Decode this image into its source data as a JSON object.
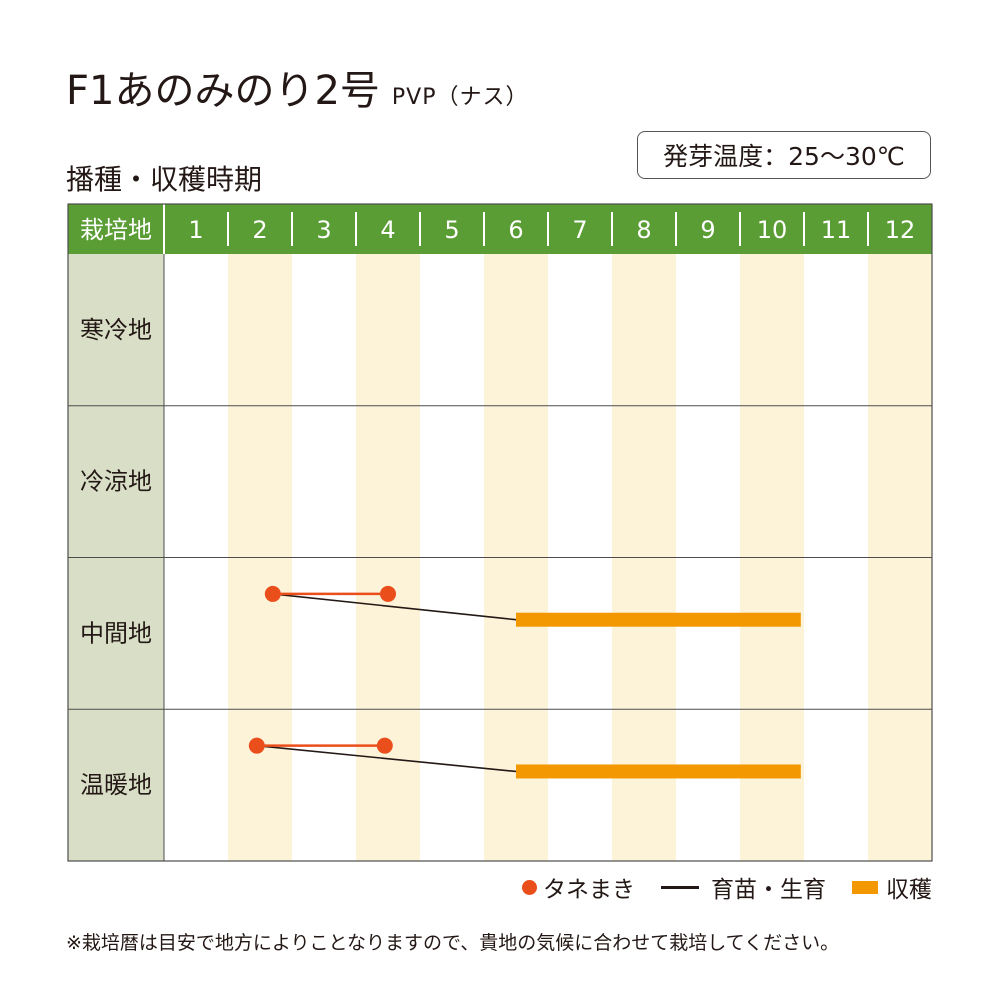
{
  "title": {
    "main": "F1あのみのり2号",
    "sub": "PVP（ナス）"
  },
  "germination_temp": "発芽温度：25～30℃",
  "section_title": "播種・収穫時期",
  "legend": {
    "sowing": "タネまき",
    "growing": "育苗・生育",
    "harvest": "収穫"
  },
  "note": "※栽培暦は目安で地方によりことなりますので、貴地の気候に合わせて栽培してください。",
  "colors": {
    "header_green": "#5a9d34",
    "region_bg": "#d8dfc6",
    "stripe": "#fdf3d9",
    "sowing": "#ea4e1b",
    "growing": "#231815",
    "harvest": "#f39800"
  },
  "chart_data": {
    "type": "gantt",
    "corner_label": "栽培地",
    "months": [
      "1",
      "2",
      "3",
      "4",
      "5",
      "6",
      "7",
      "8",
      "9",
      "10",
      "11",
      "12"
    ],
    "highlighted_months": [
      2,
      4,
      6,
      8,
      10,
      12
    ],
    "regions": [
      {
        "name": "寒冷地",
        "sowing": null,
        "harvest": null
      },
      {
        "name": "冷涼地",
        "sowing": null,
        "harvest": null
      },
      {
        "name": "中間地",
        "sowing": [
          2.7,
          4.5
        ],
        "harvest": [
          6.5,
          10.95
        ]
      },
      {
        "name": "温暖地",
        "sowing": [
          2.45,
          4.45
        ],
        "harvest": [
          6.5,
          10.95
        ]
      }
    ]
  }
}
